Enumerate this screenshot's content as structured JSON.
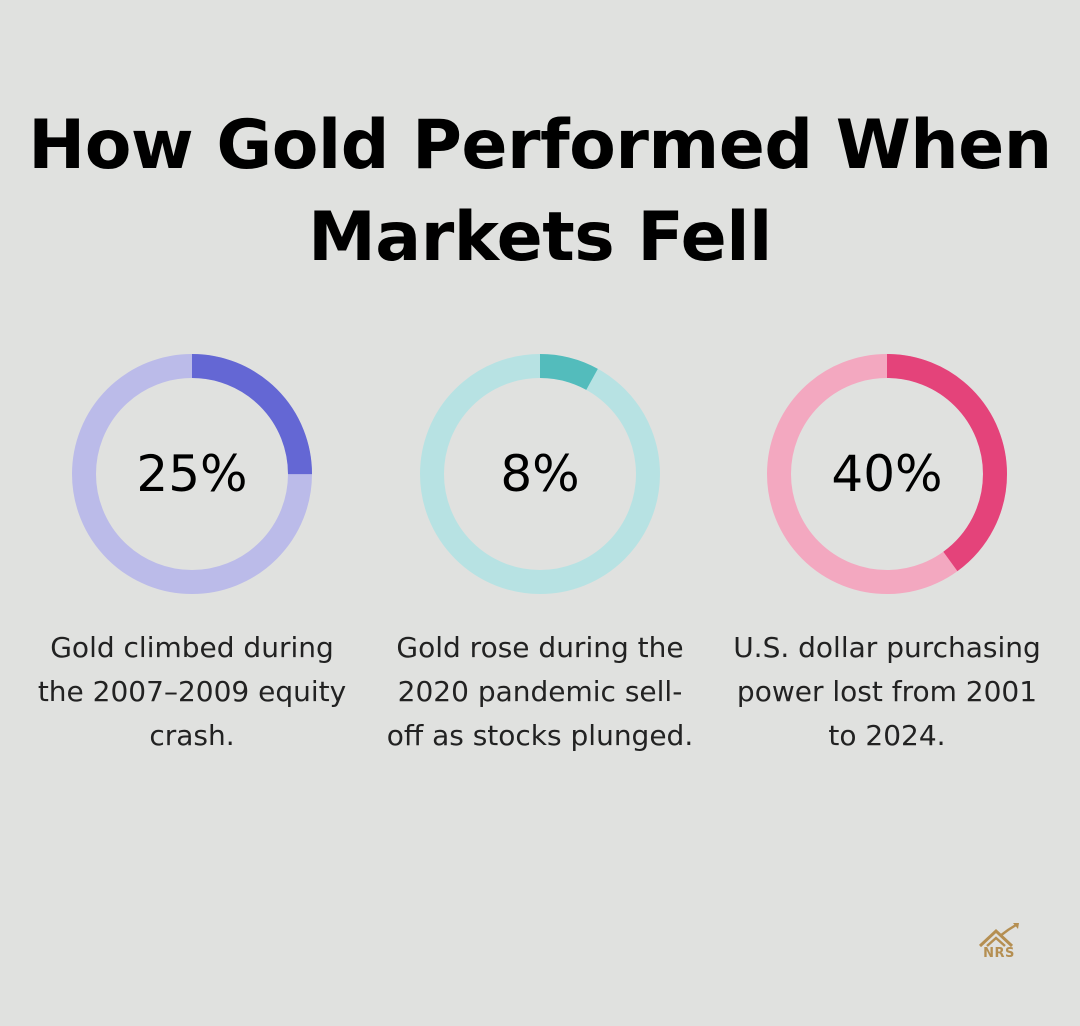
{
  "title": "How Gold Performed When Markets Fell",
  "chart_data": [
    {
      "type": "pie",
      "value": 25,
      "label": "25%",
      "description": "Gold climbed during the 2007–2009 equity crash.",
      "colors": {
        "fill": "#6467d4",
        "track": "#bbbbe9"
      }
    },
    {
      "type": "pie",
      "value": 8,
      "label": "8%",
      "description": "Gold rose during the 2020 pandemic sell-off as stocks plunged.",
      "colors": {
        "fill": "#53bcbc",
        "track": "#b7e2e3"
      }
    },
    {
      "type": "pie",
      "value": 40,
      "label": "40%",
      "description": "U.S. dollar purchasing power lost from 2001 to 2024.",
      "colors": {
        "fill": "#e4437a",
        "track": "#f3a8c0"
      }
    }
  ],
  "logo": {
    "text": "NRS",
    "icon": "house-chart-icon",
    "color": "#b58f52"
  }
}
